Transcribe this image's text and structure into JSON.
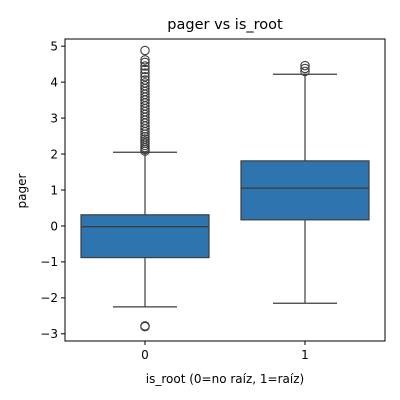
{
  "chart_data": {
    "type": "box",
    "title": "pager vs is_root",
    "xlabel": "is_root (0=no raíz, 1=raíz)",
    "ylabel": "pager",
    "categories": [
      "0",
      "1"
    ],
    "ylim": [
      -3.2,
      5.2
    ],
    "yticks": [
      -3,
      -2,
      -1,
      0,
      1,
      2,
      3,
      4,
      5
    ],
    "grid": false,
    "box_color": "#2e75b0",
    "line_color": "#3d3d3d",
    "boxes": [
      {
        "category": "0",
        "whisker_low": -2.25,
        "q1": -0.88,
        "median": -0.02,
        "q3": 0.31,
        "whisker_high": 2.05,
        "outliers": [
          -2.78,
          -2.8,
          2.08,
          2.13,
          2.18,
          2.24,
          2.3,
          2.36,
          2.42,
          2.48,
          2.55,
          2.62,
          2.7,
          2.78,
          2.86,
          2.94,
          3.02,
          3.1,
          3.18,
          3.26,
          3.34,
          3.42,
          3.5,
          3.58,
          3.66,
          3.74,
          3.82,
          3.9,
          3.98,
          4.06,
          4.15,
          4.25,
          4.35,
          4.45,
          4.55,
          4.62,
          4.88
        ]
      },
      {
        "category": "1",
        "whisker_low": -2.15,
        "q1": 0.17,
        "median": 1.05,
        "q3": 1.81,
        "whisker_high": 4.22,
        "outliers": [
          4.3,
          4.38,
          4.46
        ]
      }
    ]
  }
}
